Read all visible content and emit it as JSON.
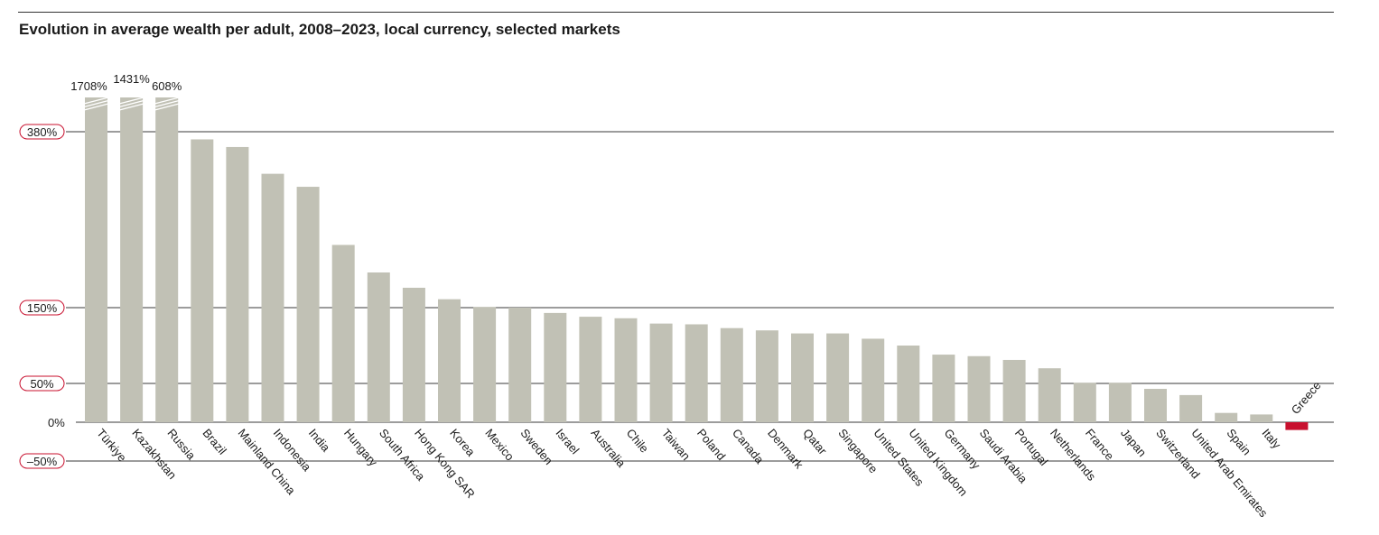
{
  "chart_data": {
    "type": "bar",
    "title": "Evolution in average wealth per adult, 2008–2023, local currency, selected markets",
    "xlabel": "",
    "ylabel": "",
    "unit": "%",
    "ylim": [
      -50,
      380
    ],
    "axis_break": true,
    "gridlines": [
      380,
      150,
      50,
      0,
      -50
    ],
    "tick_labels": [
      "380%",
      "150%",
      "50%",
      "0%",
      "–50%"
    ],
    "categories": [
      "Türkiye",
      "Kazakhstan",
      "Russia",
      "Brazil",
      "Mainland China",
      "Indonesia",
      "India",
      "Hungary",
      "South Africa",
      "Hong Kong SAR",
      "Korea",
      "Mexico",
      "Sweden",
      "Israel",
      "Australia",
      "Chile",
      "Taiwan",
      "Poland",
      "Canada",
      "Denmark",
      "Qatar",
      "Singapore",
      "United States",
      "United Kingdom",
      "Germany",
      "Saudi Arabia",
      "Portugal",
      "Netherlands",
      "France",
      "Japan",
      "Switzerland",
      "United Arab Emirates",
      "Spain",
      "Italy",
      "Greece"
    ],
    "values": [
      1708,
      1431,
      608,
      370,
      360,
      325,
      308,
      232,
      196,
      176,
      161,
      151,
      150,
      143,
      138,
      136,
      129,
      128,
      123,
      120,
      116,
      116,
      109,
      100,
      88,
      86,
      81,
      70,
      51,
      51,
      43,
      35,
      12,
      10,
      -10
    ],
    "value_labels": {
      "Türkiye": "1708%",
      "Kazakhstan": "1431%",
      "Russia": "608%"
    },
    "highlight": "Greece",
    "colors": {
      "bar": "#c1c1b5",
      "highlight": "#c8102e",
      "grid": "#3a3a3a",
      "tick_border": "#c8102e",
      "text": "#1a1a1a"
    }
  }
}
